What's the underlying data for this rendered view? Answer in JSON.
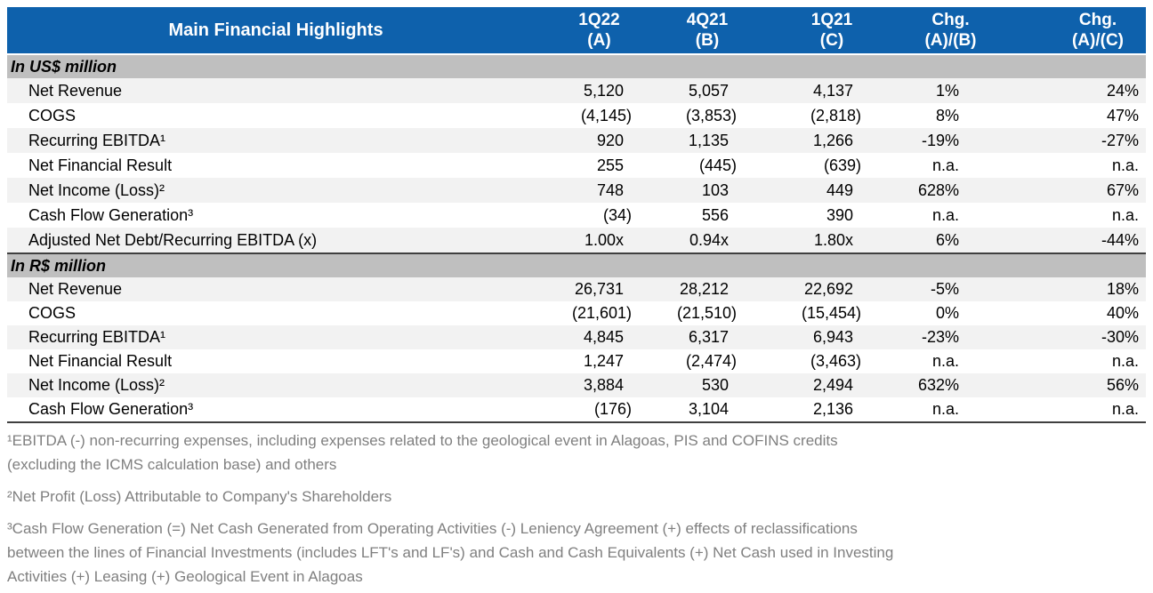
{
  "header": {
    "title": "Main Financial Highlights",
    "columns": [
      {
        "line1": "1Q22",
        "line2": "(A)"
      },
      {
        "line1": "4Q21",
        "line2": "(B)"
      },
      {
        "line1": "1Q21",
        "line2": "(C)"
      },
      {
        "line1": "Chg.",
        "line2": "(A)/(B)"
      },
      {
        "line1": "Chg.",
        "line2": "(A)/(C)"
      }
    ]
  },
  "sections": [
    {
      "label": "In US$ million",
      "rows": [
        {
          "label": "Net Revenue",
          "values": [
            "5,120",
            "5,057",
            "4,137",
            "1%",
            "24%"
          ]
        },
        {
          "label": "COGS",
          "values": [
            "(4,145)",
            "(3,853)",
            "(2,818)",
            "8%",
            "47%"
          ]
        },
        {
          "label": "Recurring EBITDA¹",
          "values": [
            "920",
            "1,135",
            "1,266",
            "-19%",
            "-27%"
          ]
        },
        {
          "label": "Net Financial Result",
          "values": [
            "255",
            "(445)",
            "(639)",
            "n.a.",
            "n.a."
          ]
        },
        {
          "label": "Net Income (Loss)²",
          "values": [
            "748",
            "103",
            "449",
            "628%",
            "67%"
          ]
        },
        {
          "label": "Cash Flow Generation³",
          "values": [
            "(34)",
            "556",
            "390",
            "n.a.",
            "n.a."
          ]
        },
        {
          "label": "Adjusted Net Debt/Recurring EBITDA (x)",
          "values": [
            "1.00x",
            "0.94x",
            "1.80x",
            "6%",
            "-44%"
          ]
        }
      ]
    },
    {
      "label": "In R$ million",
      "rows": [
        {
          "label": "Net Revenue",
          "values": [
            "26,731",
            "28,212",
            "22,692",
            "-5%",
            "18%"
          ]
        },
        {
          "label": "COGS",
          "values": [
            "(21,601)",
            "(21,510)",
            "(15,454)",
            "0%",
            "40%"
          ]
        },
        {
          "label": "Recurring EBITDA¹",
          "values": [
            "4,845",
            "6,317",
            "6,943",
            "-23%",
            "-30%"
          ]
        },
        {
          "label": "Net Financial Result",
          "values": [
            "1,247",
            "(2,474)",
            "(3,463)",
            "n.a.",
            "n.a."
          ]
        },
        {
          "label": "Net Income (Loss)²",
          "values": [
            "3,884",
            "530",
            "2,494",
            "632%",
            "56%"
          ]
        },
        {
          "label": "Cash Flow Generation³",
          "values": [
            "(176)",
            "3,104",
            "2,136",
            "n.a.",
            "n.a."
          ]
        }
      ]
    }
  ],
  "footnotes": [
    {
      "lines": [
        "¹EBITDA (-) non-recurring expenses, including expenses related to the geological event in Alagoas, PIS and COFINS credits",
        "(excluding the ICMS calculation base) and others"
      ]
    },
    {
      "lines": [
        "²Net Profit (Loss) Attributable to Company's Shareholders"
      ]
    },
    {
      "lines": [
        "³Cash Flow Generation (=) Net Cash Generated from Operating Activities (-) Leniency Agreement (+) effects of reclassifications",
        "between the lines of Financial Investments (includes LFT's and LF's) and Cash and Cash Equivalents (+) Net Cash used in Investing",
        "Activities (+) Leasing (+) Geological Event in Alagoas"
      ]
    }
  ],
  "colors": {
    "header_bg": "#0E61AC",
    "header_text": "#FFFFFF",
    "band_bg": "#BFBFBF",
    "stripe_bg": "#F2F2F2",
    "separator": "#3F3F3F",
    "footnote_text": "#7F7F7F"
  }
}
